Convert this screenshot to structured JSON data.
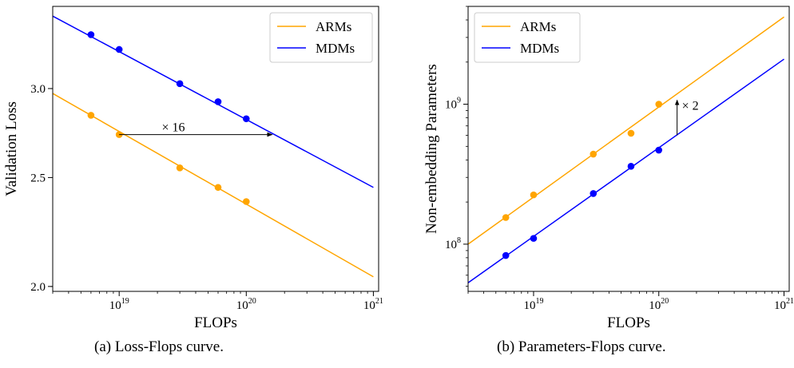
{
  "captions": {
    "a": "(a) Loss-Flops curve.",
    "b": "(b) Parameters-Flops curve."
  },
  "colors": {
    "arm": "#FFA500",
    "mdm": "#0000FF"
  },
  "chart_data": [
    {
      "type": "line",
      "title": "",
      "xlabel": "FLOPs",
      "ylabel": "Validation Loss",
      "x_scale": "log",
      "y_scale": "log",
      "xlim": [
        3e+18,
        1.1e+21
      ],
      "ylim": [
        1.98,
        3.55
      ],
      "x_ticks": [
        {
          "value": 1e+19,
          "label": "10^19"
        },
        {
          "value": 1e+20,
          "label": "10^20"
        },
        {
          "value": 1e+21,
          "label": "10^21"
        }
      ],
      "y_ticks": [
        {
          "value": 2.0,
          "label": "2.0"
        },
        {
          "value": 2.5,
          "label": "2.5"
        },
        {
          "value": 3.0,
          "label": "3.0"
        }
      ],
      "legend": {
        "position": "top-right",
        "entries": [
          "ARMs",
          "MDMs"
        ]
      },
      "series": [
        {
          "name": "ARMs",
          "color": "#FFA500",
          "points": [
            [
              6e+18,
              2.84
            ],
            [
              1e+19,
              2.73
            ],
            [
              3e+19,
              2.55
            ],
            [
              6e+19,
              2.45
            ],
            [
              1e+20,
              2.38
            ]
          ],
          "fit": [
            [
              3e+18,
              2.97
            ],
            [
              1e+21,
              2.04
            ]
          ]
        },
        {
          "name": "MDMs",
          "color": "#0000FF",
          "points": [
            [
              6e+18,
              3.35
            ],
            [
              1e+19,
              3.25
            ],
            [
              3e+19,
              3.03
            ],
            [
              6e+19,
              2.92
            ],
            [
              1e+20,
              2.82
            ]
          ],
          "fit": [
            [
              3e+18,
              3.48
            ],
            [
              1e+21,
              2.45
            ]
          ]
        }
      ],
      "annotation": {
        "text": "× 16",
        "from": [
          1e+19,
          2.73
        ],
        "to": [
          1.6e+20,
          2.73
        ]
      }
    },
    {
      "type": "line",
      "title": "",
      "xlabel": "FLOPs",
      "ylabel": "Non-embedding Parameters",
      "x_scale": "log",
      "y_scale": "log",
      "xlim": [
        3e+18,
        1.1e+21
      ],
      "ylim": [
        46000000.0,
        5000000000.0
      ],
      "x_ticks": [
        {
          "value": 1e+19,
          "label": "10^19"
        },
        {
          "value": 1e+20,
          "label": "10^20"
        },
        {
          "value": 1e+21,
          "label": "10^21"
        }
      ],
      "y_ticks": [
        {
          "value": 100000000.0,
          "label": "10^8"
        },
        {
          "value": 1000000000.0,
          "label": "10^9"
        }
      ],
      "legend": {
        "position": "top-left",
        "entries": [
          "ARMs",
          "MDMs"
        ]
      },
      "series": [
        {
          "name": "ARMs",
          "color": "#FFA500",
          "points": [
            [
              6e+18,
              155000000.0
            ],
            [
              1e+19,
              225000000.0
            ],
            [
              3e+19,
              440000000.0
            ],
            [
              6e+19,
              620000000.0
            ],
            [
              1e+20,
              1000000000.0
            ]
          ],
          "fit": [
            [
              3e+18,
              100000000.0
            ],
            [
              1e+21,
              4200000000.0
            ]
          ]
        },
        {
          "name": "MDMs",
          "color": "#0000FF",
          "points": [
            [
              6e+18,
              83000000.0
            ],
            [
              1e+19,
              110000000.0
            ],
            [
              3e+19,
              230000000.0
            ],
            [
              6e+19,
              360000000.0
            ],
            [
              1e+20,
              470000000.0
            ]
          ],
          "fit": [
            [
              3e+18,
              53000000.0
            ],
            [
              1e+21,
              2100000000.0
            ]
          ]
        }
      ],
      "annotation": {
        "text": "× 2",
        "from": [
          1.4e+20,
          600000000.0
        ],
        "to": [
          1.4e+20,
          1070000000.0
        ]
      }
    }
  ]
}
